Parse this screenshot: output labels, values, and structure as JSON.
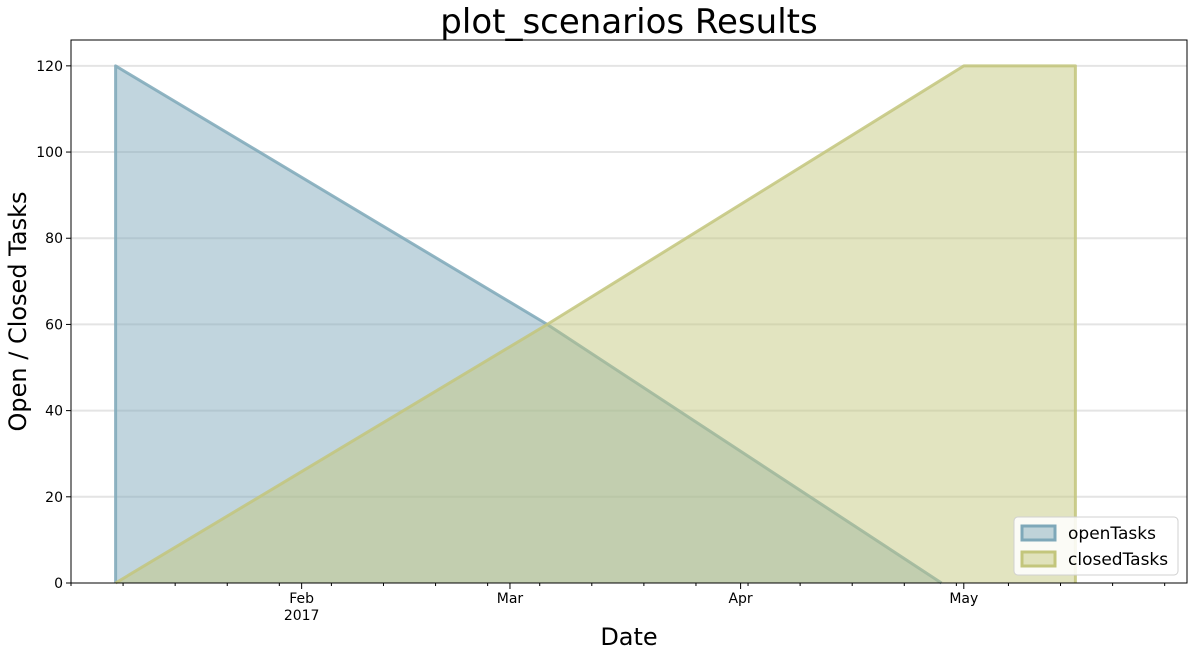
{
  "chart_data": {
    "type": "area",
    "title": "plot_scenarios Results",
    "xlabel": "Date",
    "ylabel": "Open / Closed Tasks",
    "xlim": [
      "2017-01-01",
      "2017-05-31"
    ],
    "ylim": [
      0,
      126
    ],
    "y_ticks": [
      0,
      20,
      40,
      60,
      80,
      100,
      120
    ],
    "x_ticks": [
      {
        "date": "2017-02-01",
        "label": "Feb",
        "sublabel": "2017"
      },
      {
        "date": "2017-03-01",
        "label": "Mar",
        "sublabel": ""
      },
      {
        "date": "2017-04-01",
        "label": "Apr",
        "sublabel": ""
      },
      {
        "date": "2017-05-01",
        "label": "May",
        "sublabel": ""
      }
    ],
    "grid": "horizontal",
    "legend_position": "lower-right",
    "series": [
      {
        "name": "openTasks",
        "color": "#7ea8b9",
        "points": [
          {
            "x": "2017-01-07",
            "y": 0
          },
          {
            "x": "2017-01-07",
            "y": 120
          },
          {
            "x": "2017-03-06",
            "y": 60
          },
          {
            "x": "2017-04-28",
            "y": 0
          }
        ]
      },
      {
        "name": "closedTasks",
        "color": "#c3c67c",
        "points": [
          {
            "x": "2017-01-07",
            "y": 0
          },
          {
            "x": "2017-03-06",
            "y": 60
          },
          {
            "x": "2017-05-01",
            "y": 120
          },
          {
            "x": "2017-05-16",
            "y": 120
          },
          {
            "x": "2017-05-16",
            "y": 0
          }
        ]
      }
    ]
  }
}
